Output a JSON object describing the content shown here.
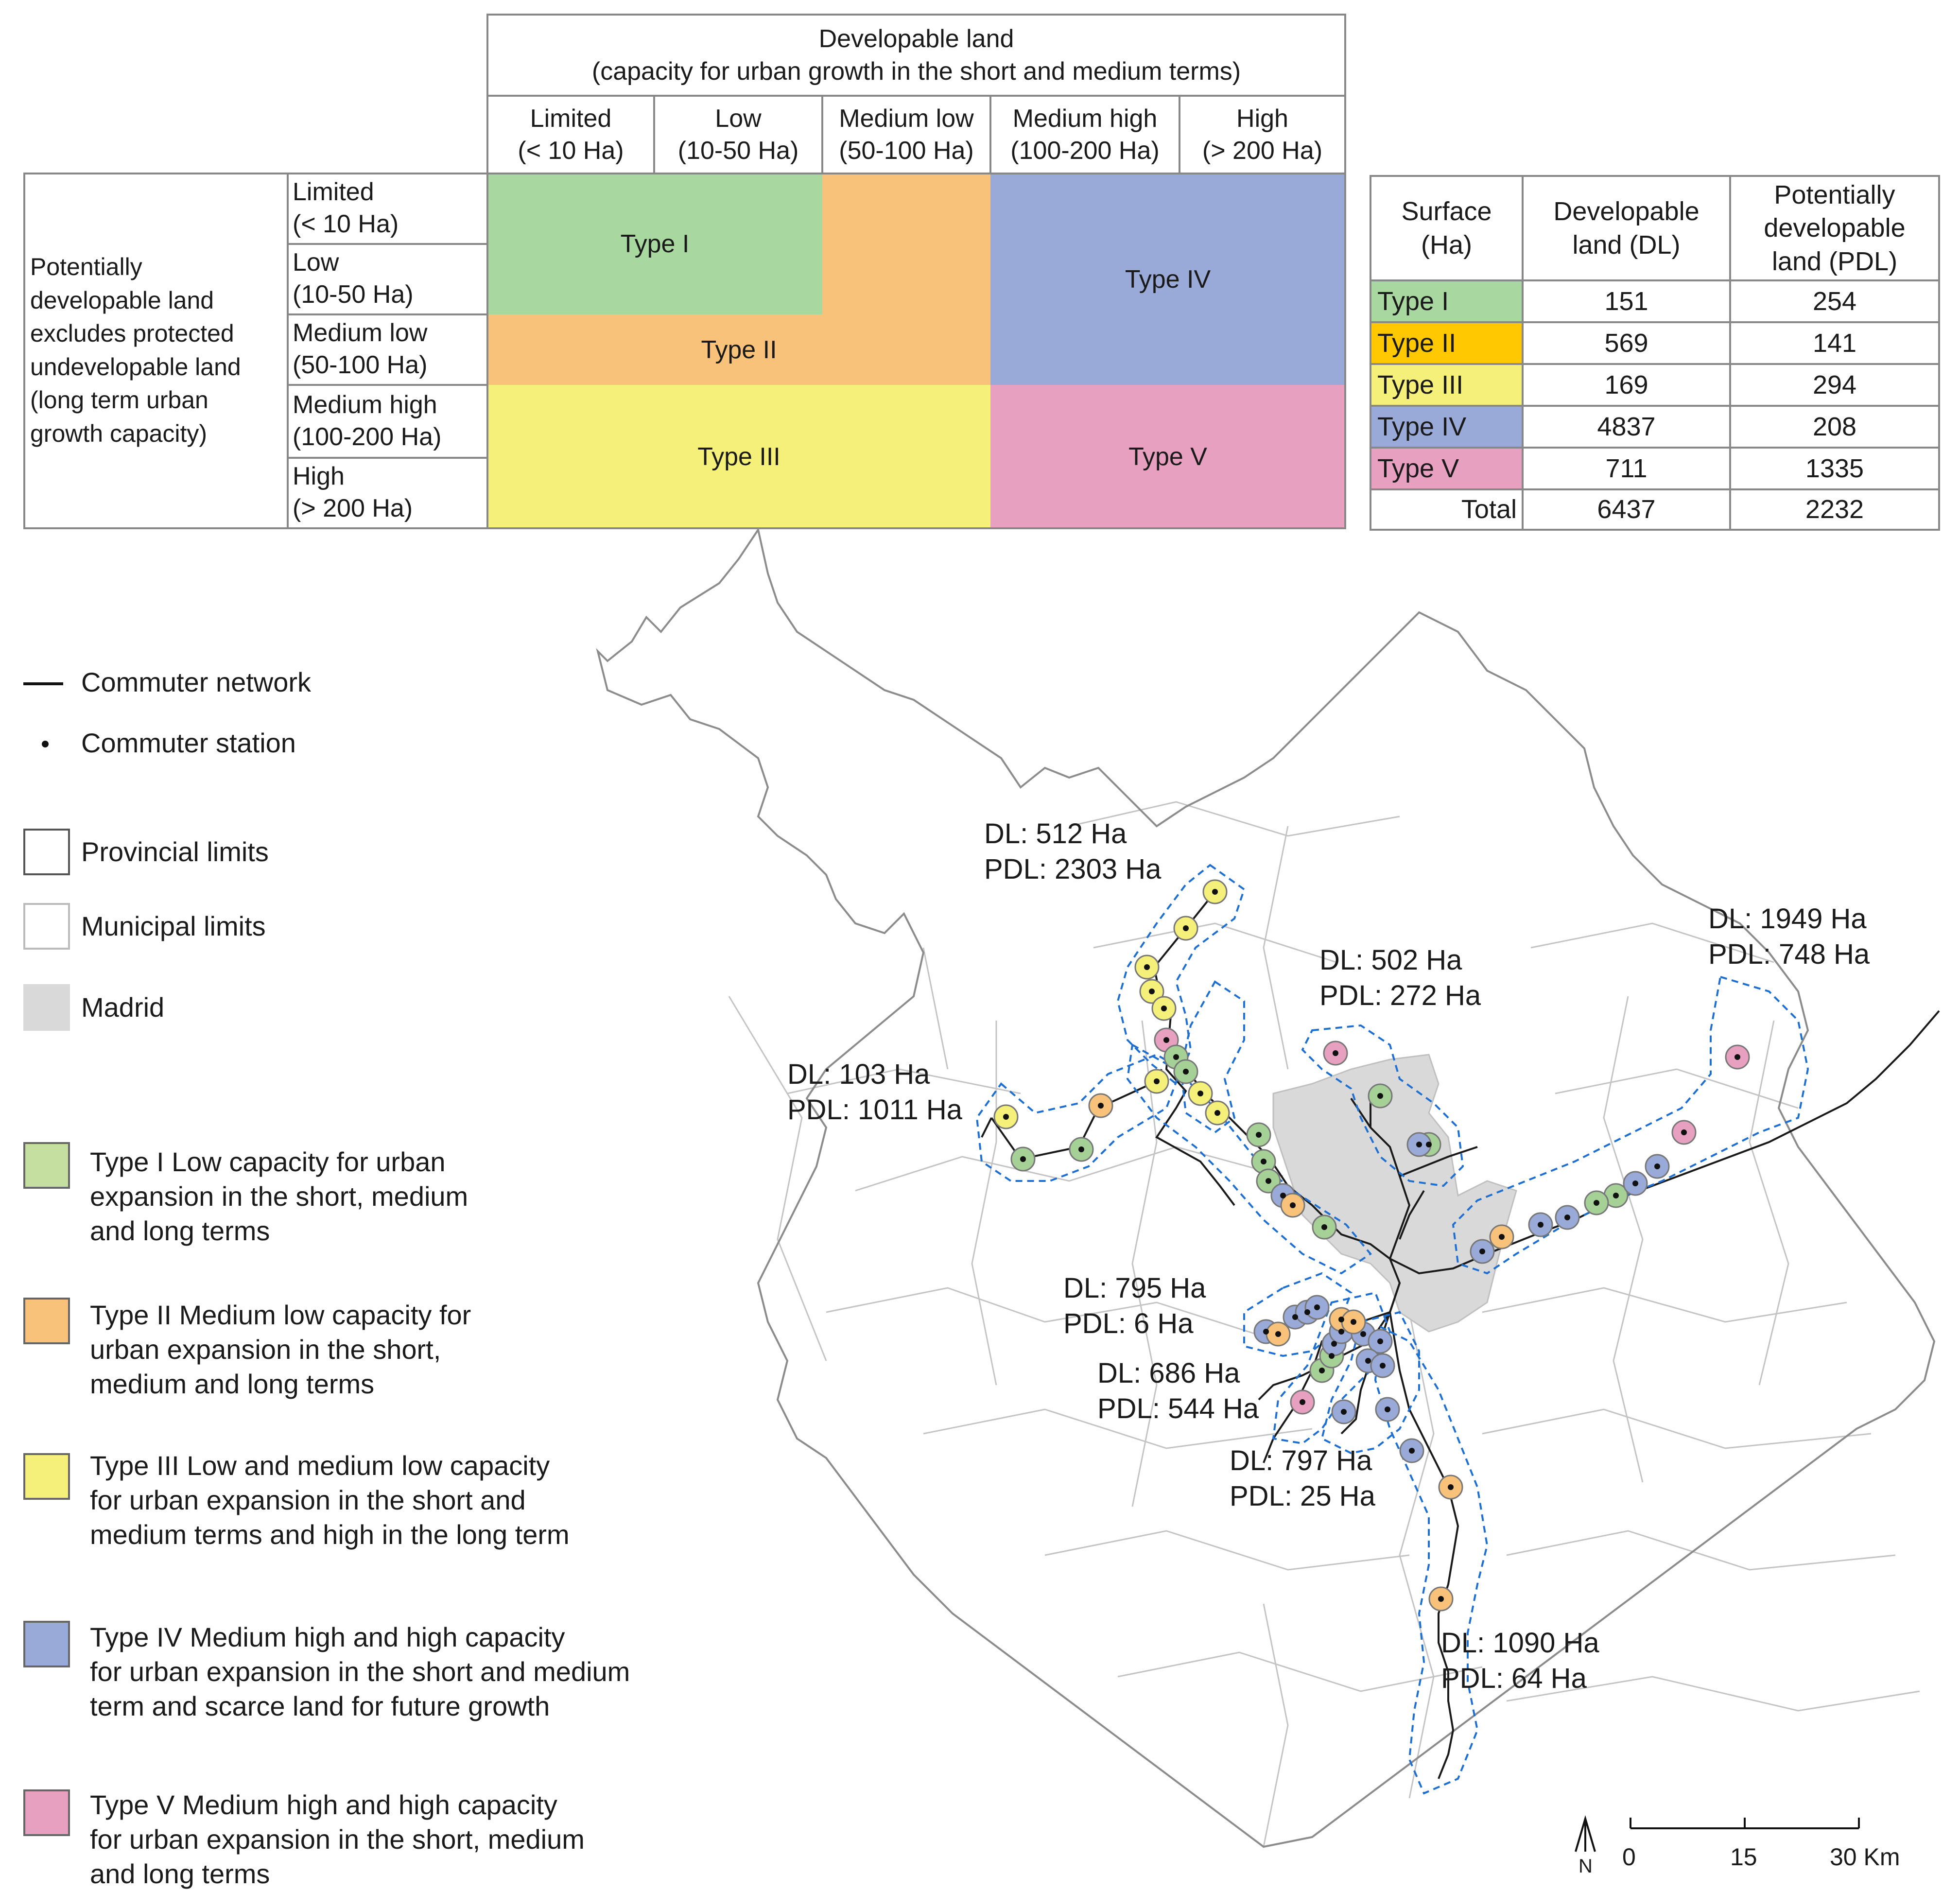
{
  "matrix": {
    "dl_header": "Developable land\n(capacity for urban growth in the short and medium terms)",
    "dl_columns": [
      "Limited\n(< 10 Ha)",
      "Low\n(10-50 Ha)",
      "Medium low\n(50-100 Ha)",
      "Medium high\n(100-200 Ha)",
      "High\n(> 200 Ha)"
    ],
    "pdl_header": "Potentially\ndevelopable land\nexcludes protected\nundevelopable land\n(long term urban\ngrowth capacity)",
    "pdl_rows": [
      "Limited\n(< 10 Ha)",
      "Low\n(10-50 Ha)",
      "Medium low\n(50-100 Ha)",
      "Medium high\n(100-200 Ha)",
      "High\n(> 200 Ha)"
    ],
    "type_labels": [
      "Type I",
      "Type II",
      "Type III",
      "Type IV",
      "Type V"
    ]
  },
  "surface_table": {
    "headers": [
      "Surface\n(Ha)",
      "Developable\nland (DL)",
      "Potentially\ndevelopable\nland  (PDL)"
    ],
    "rows": [
      {
        "type": "Type I",
        "dl": "151",
        "pdl": "254"
      },
      {
        "type": "Type II",
        "dl": "569",
        "pdl": "141"
      },
      {
        "type": "Type III",
        "dl": "169",
        "pdl": "294"
      },
      {
        "type": "Type IV",
        "dl": "4837",
        "pdl": "208"
      },
      {
        "type": "Type V",
        "dl": "711",
        "pdl": "1335"
      }
    ],
    "total": {
      "label": "Total",
      "dl": "6437",
      "pdl": "2232"
    }
  },
  "legend": {
    "network": "Commuter network",
    "station": "Commuter station",
    "provincial": "Provincial limits",
    "municipal": "Municipal limits",
    "madrid": "Madrid",
    "types": [
      {
        "name": "Type I",
        "desc": "Type I  Low capacity for urban\nexpansion in the short, medium\nand long terms"
      },
      {
        "name": "Type II",
        "desc": "Type II  Medium low capacity for\nurban expansion in the short,\nmedium and long terms"
      },
      {
        "name": "Type III",
        "desc": "Type III  Low and medium low capacity\nfor urban expansion in the short and\nmedium terms and high in the long term"
      },
      {
        "name": "Type IV",
        "desc": "Type IV  Medium high and high capacity\nfor urban expansion in the short and medium\nterm and scarce land for future growth"
      },
      {
        "name": "Type V",
        "desc": "Type V  Medium high and high capacity\nfor urban expansion in the short, medium\nand long terms"
      }
    ]
  },
  "corridor_labels": [
    "DL: 512 Ha\nPDL: 2303 Ha",
    "DL: 103  Ha\nPDL: 1011 Ha",
    "DL: 502 Ha\nPDL: 272 Ha",
    "DL: 1949 Ha\nPDL: 748 Ha",
    "DL: 795 Ha\nPDL: 6 Ha",
    "DL: 686 Ha\nPDL: 544 Ha",
    "DL: 797 Ha\nPDL: 25 Ha",
    "DL: 1090 Ha\nPDL: 64 Ha"
  ],
  "scale": {
    "north": "N",
    "ticks": [
      "0",
      "15",
      "30 Km"
    ]
  },
  "colors": {
    "type_i": "#a8d8a0",
    "type_i_map": "#a6d196",
    "type_ii": "#f8c27a",
    "type_ii_table": "#ffc800",
    "type_iii": "#f5f07a",
    "type_iv": "#9aaad8",
    "type_v": "#e8a0c0",
    "madrid": "#d9d9d9",
    "buffer": "#1f6fd1"
  }
}
